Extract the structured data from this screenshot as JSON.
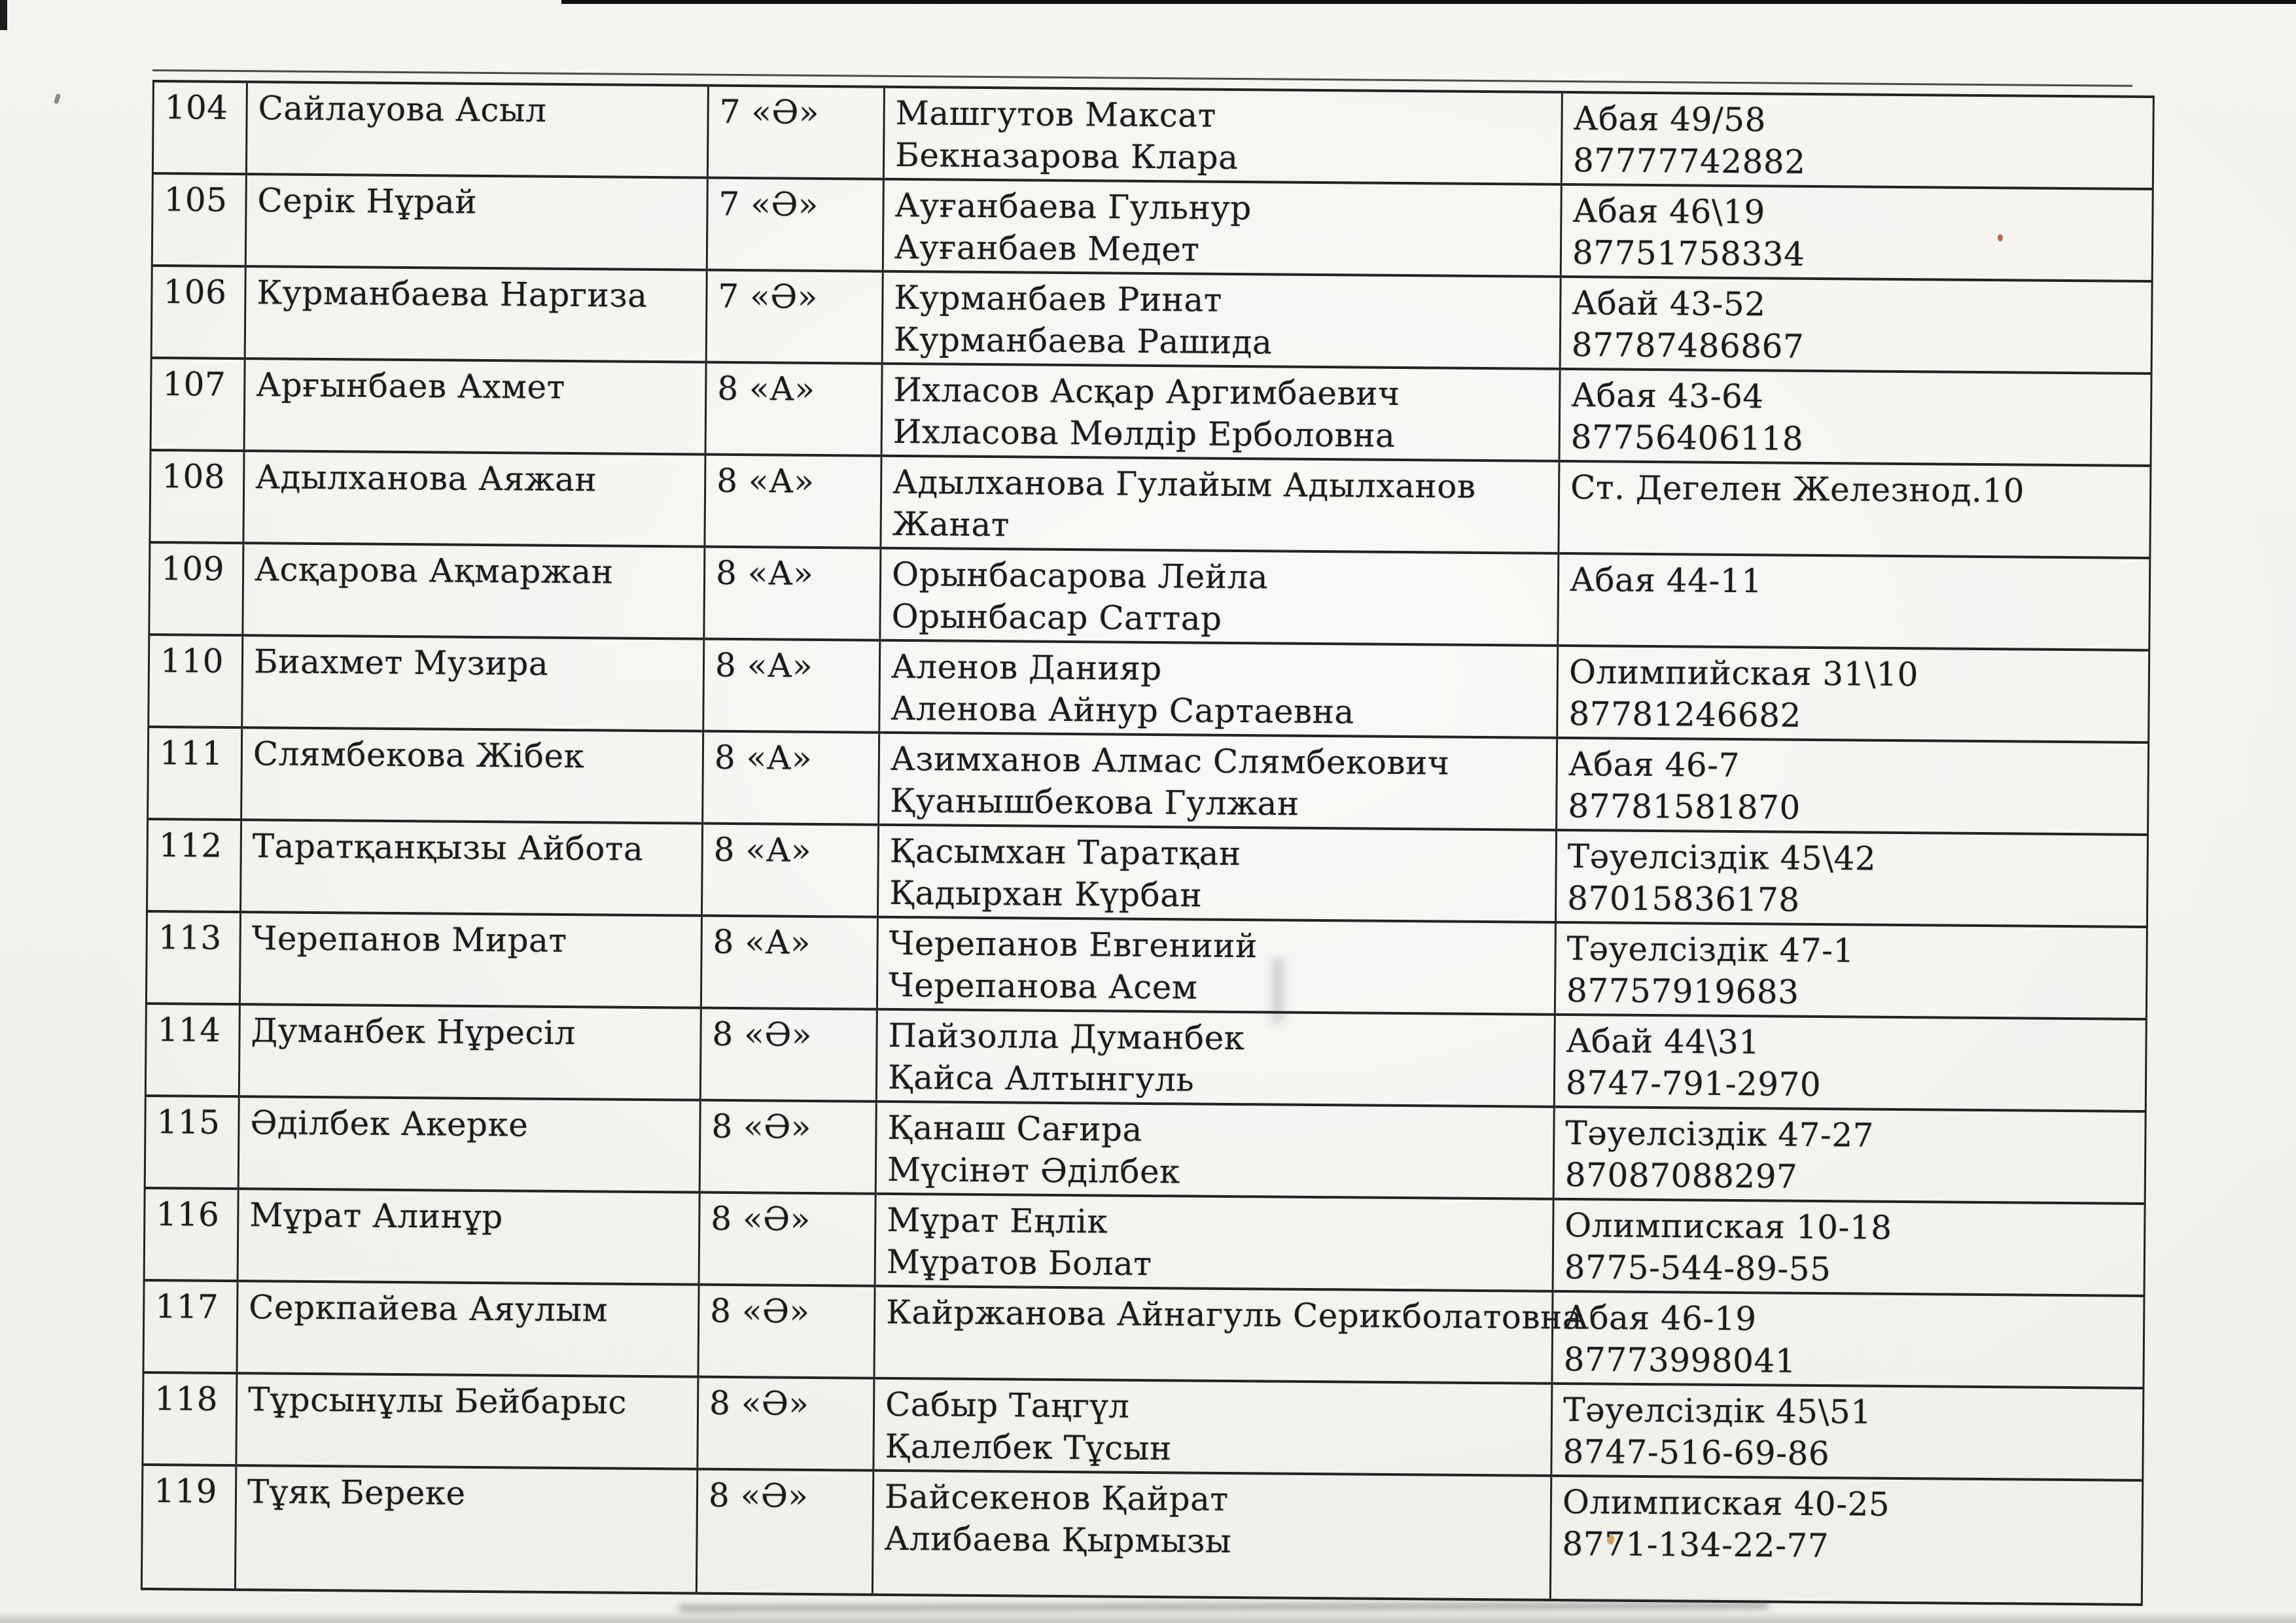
{
  "page": {
    "paper_color": "#f4f3ef",
    "ink_color": "#1b1b1b"
  },
  "table": {
    "rows": [
      {
        "num": "104",
        "student": "Сайлауова Асыл",
        "grade": "7 «Ә»",
        "parents": [
          "Машгутов Максат",
          "Бекназарова Клара"
        ],
        "contact": [
          "Абая 49/58",
          "87777742882"
        ]
      },
      {
        "num": "105",
        "student": "Серік Нұрай",
        "grade": "7 «Ә»",
        "parents": [
          "Ауғанбаева Гульнур",
          "Ауғанбаев Медет"
        ],
        "contact": [
          "Абая 46\\19",
          "87751758334"
        ]
      },
      {
        "num": "106",
        "student": "Курманбаева Наргиза",
        "grade": "7 «Ә»",
        "parents": [
          "Курманбаев Ринат",
          "Курманбаева Рашида"
        ],
        "contact": [
          "Абай 43-52",
          "87787486867"
        ]
      },
      {
        "num": "107",
        "student": "Арғынбаев Ахмет",
        "grade": "8 «А»",
        "parents": [
          "Ихласов Асқар Аргимбаевич",
          "Ихласова Мөлдір Ерболовна"
        ],
        "contact": [
          "Абая 43-64",
          "87756406118"
        ]
      },
      {
        "num": "108",
        "student": "Адылханова Аяжан",
        "grade": "8 «А»",
        "parents": [
          "Адылханова Гулайым Адылханов",
          "Жанат"
        ],
        "contact": [
          "Ст. Дегелен Железнод.10"
        ]
      },
      {
        "num": "109",
        "student": "Асқарова Ақмаржан",
        "grade": "8 «А»",
        "parents": [
          "Орынбасарова Лейла",
          "Орынбасар Саттар"
        ],
        "contact": [
          "Абая 44-11"
        ]
      },
      {
        "num": "110",
        "student": "Биахмет Музира",
        "grade": "8 «А»",
        "parents": [
          "Аленов Данияр",
          "Аленова Айнур Сартаевна"
        ],
        "contact": [
          "Олимпийская 31\\10",
          "87781246682"
        ]
      },
      {
        "num": "111",
        "student": "Слямбекова Жібек",
        "grade": "8 «А»",
        "parents": [
          "Азимханов Алмас Слямбекович",
          "Қуанышбекова Гулжан"
        ],
        "contact": [
          "Абая 46-7",
          "87781581870"
        ]
      },
      {
        "num": "112",
        "student": "Таратқанқызы Айбота",
        "grade": "8 «А»",
        "parents": [
          "Қасымхан Таратқан",
          "Қадырхан Күрбан"
        ],
        "contact": [
          "Тәуелсіздік 45\\42",
          "87015836178"
        ]
      },
      {
        "num": "113",
        "student": "Черепанов Мират",
        "grade": "8 «А»",
        "parents": [
          "Черепанов Евгениий",
          "Черепанова Асем"
        ],
        "contact": [
          "Тәуелсіздік  47-1",
          "87757919683"
        ]
      },
      {
        "num": "114",
        "student": "Думанбек Нұресіл",
        "grade": "8 «Ә»",
        "parents": [
          "Пайзолла Думанбек",
          "Қайса Алтынгуль"
        ],
        "contact": [
          "Абай 44\\31",
          "8747-791-2970"
        ]
      },
      {
        "num": "115",
        "student": "Әділбек Акерке",
        "grade": "8 «Ә»",
        "parents": [
          "Қанаш Сағира",
          "Мүсінәт Әділбек"
        ],
        "contact": [
          "Тәуелсіздік 47-27",
          "87087088297"
        ]
      },
      {
        "num": "116",
        "student": "Мұрат Алинұр",
        "grade": "8 «Ә»",
        "parents": [
          "Мұрат  Еңлік",
          "Мұратов Болат"
        ],
        "contact": [
          "Олимпиская 10-18",
          "8775-544-89-55"
        ]
      },
      {
        "num": "117",
        "student": "Серкпайева Аяулым",
        "grade": "8 «Ә»",
        "parents": [
          "Кайржанова Айнагуль Серикболатовна"
        ],
        "contact": [
          "Абая 46-19",
          "87773998041"
        ]
      },
      {
        "num": "118",
        "student": "Тұрсынұлы Бейбарыс",
        "grade": "8 «Ә»",
        "parents": [
          "Сабыр Таңгүл",
          "Қалелбек Тұсын"
        ],
        "contact": [
          "Тәуелсіздік 45\\51",
          "8747-516-69-86"
        ]
      },
      {
        "num": "119",
        "student": "Тұяқ Береке",
        "grade": "8 «Ә»",
        "parents": [
          "Байсекенов Қайрат",
          "Алибаева Қырмызы"
        ],
        "contact": [
          "Олимпиская 40-25",
          "8771-134-22-77"
        ]
      }
    ]
  }
}
